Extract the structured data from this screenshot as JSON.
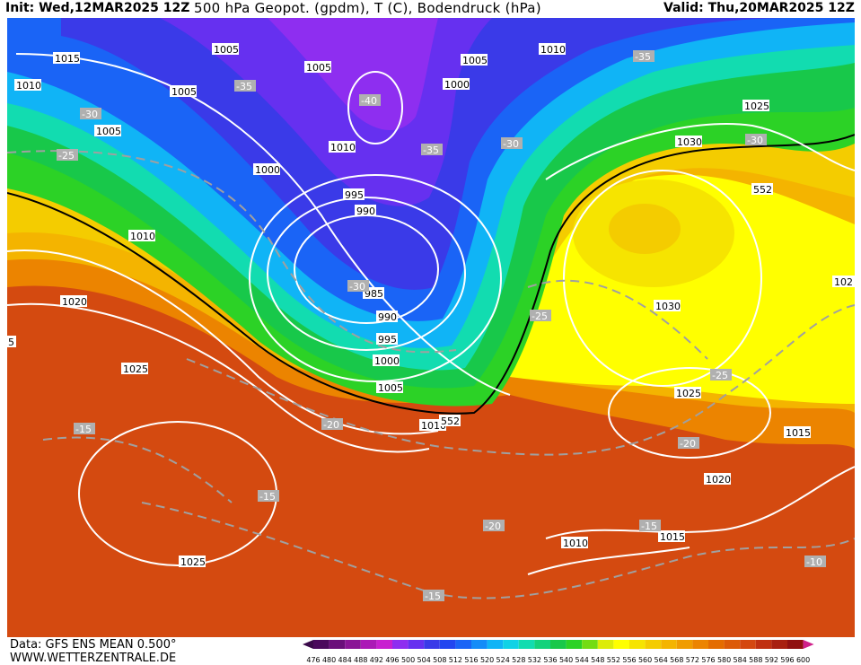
{
  "header": {
    "init": "Init: Wed,12MAR2025 12Z",
    "title": "500 hPa Geopot. (gpdm), T (C), Bodendruck (hPa)",
    "valid": "Valid: Thu,20MAR2025 12Z"
  },
  "footer": {
    "data_line": "Data: GFS ENS MEAN 0.500°",
    "site": "WWW.WETTERZENTRALE.DE"
  },
  "legend": {
    "ticks": [
      "476",
      "480",
      "484",
      "488",
      "492",
      "496",
      "500",
      "504",
      "508",
      "512",
      "516",
      "520",
      "524",
      "528",
      "532",
      "536",
      "540",
      "544",
      "548",
      "552",
      "556",
      "560",
      "564",
      "568",
      "572",
      "576",
      "580",
      "584",
      "588",
      "592",
      "596",
      "600"
    ],
    "colors": [
      "#4a0a5c",
      "#6a0f7a",
      "#8a1596",
      "#ab1ab6",
      "#c820d0",
      "#8e2ef0",
      "#6630f0",
      "#3a3ae8",
      "#2246f0",
      "#1a64f6",
      "#148cf8",
      "#10b4f6",
      "#10d2e6",
      "#12dcb0",
      "#14d27c",
      "#18c84a",
      "#2cd226",
      "#74dc14",
      "#dcec0a",
      "#ffff00",
      "#f6e400",
      "#f4cc00",
      "#f4b400",
      "#f09c00",
      "#ec8400",
      "#e46c00",
      "#dc5a08",
      "#d44810",
      "#c03010",
      "#a82010",
      "#901010"
    ],
    "left_arrow_color": "#3a0a4a",
    "right_arrow_color": "#d0208a"
  },
  "map": {
    "isobar_labels": [
      "1015",
      "1010",
      "1005",
      "1010",
      "1005",
      "1005",
      "1005",
      "1000",
      "1005",
      "1025",
      "1030",
      "1010",
      "1000",
      "995",
      "990",
      "1010",
      "985",
      "990",
      "995",
      "1000",
      "1005",
      "1030",
      "1020",
      "1025",
      "1025",
      "1010",
      "1015",
      "1020",
      "1010",
      "1015",
      "1025",
      "1020"
    ],
    "isotherm_labels": [
      "-35",
      "-30",
      "-25",
      "-40",
      "-35",
      "-30",
      "-35",
      "-30",
      "-30",
      "-25",
      "-25",
      "-20",
      "-15",
      "-15",
      "-20",
      "-20",
      "-15",
      "-15",
      "-10",
      "-25"
    ],
    "height_labels": [
      "552",
      "552",
      "102",
      "5"
    ]
  }
}
